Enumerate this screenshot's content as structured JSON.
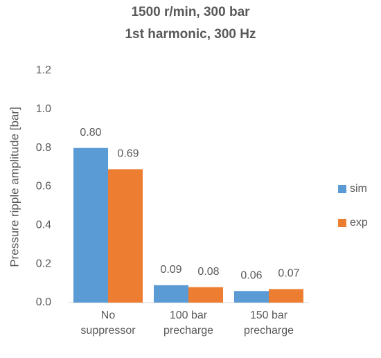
{
  "chart_data": {
    "type": "bar",
    "title": "1500 r/min, 300 bar",
    "subtitle": "1st harmonic, 300 Hz",
    "y_label": "Pressure ripple amplitude [bar]",
    "categories": [
      "No suppressor",
      "100 bar precharge",
      "150 bar precharge"
    ],
    "series": [
      {
        "name": "sim",
        "color": "#5b9bd5",
        "values": [
          0.8,
          0.09,
          0.06
        ],
        "value_labels": [
          "0.80",
          "0.09",
          "0.06"
        ]
      },
      {
        "name": "exp",
        "color": "#ed7d31",
        "values": [
          0.69,
          0.08,
          0.07
        ],
        "value_labels": [
          "0.69",
          "0.08",
          "0.07"
        ]
      }
    ],
    "ylim": [
      0,
      1.2
    ],
    "yticks": [
      {
        "value": 0,
        "label": "0.0"
      },
      0.2,
      0.4,
      0.6,
      0.8,
      {
        "value": 1,
        "label": "1.0"
      },
      1.2
    ],
    "grid": false,
    "legend": "right"
  }
}
